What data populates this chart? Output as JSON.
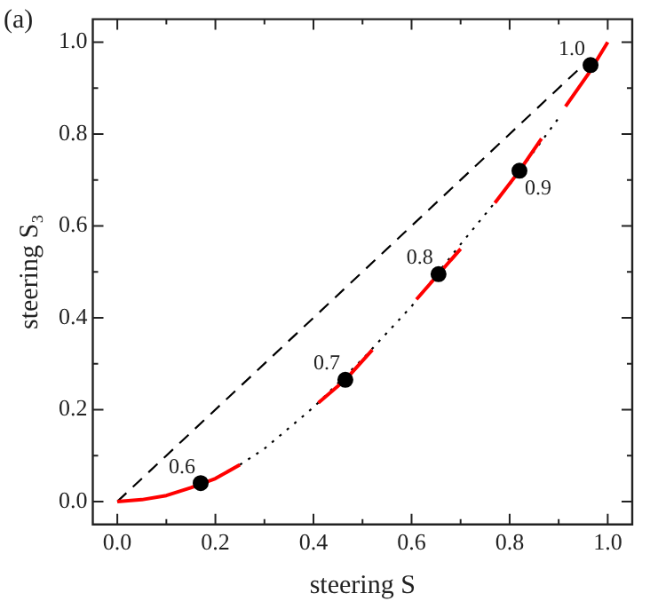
{
  "chart_data": {
    "type": "line",
    "title": "(a)",
    "xlabel": "steering S",
    "ylabel": "steering S₃",
    "xlim": [
      -0.05,
      1.05
    ],
    "ylim": [
      -0.05,
      1.05
    ],
    "xticks": [
      {
        "value": 0,
        "label": "0.0"
      },
      {
        "value": 0.1,
        "label": null
      },
      {
        "value": 0.2,
        "label": "0.2"
      },
      {
        "value": 0.3,
        "label": null
      },
      {
        "value": 0.4,
        "label": "0.4"
      },
      {
        "value": 0.5,
        "label": null
      },
      {
        "value": 0.6,
        "label": "0.6"
      },
      {
        "value": 0.7,
        "label": null
      },
      {
        "value": 0.8,
        "label": "0.8"
      },
      {
        "value": 0.9,
        "label": null
      },
      {
        "value": 1,
        "label": "1.0"
      }
    ],
    "yticks": [
      {
        "value": 0,
        "label": "0.0"
      },
      {
        "value": 0.1,
        "label": null
      },
      {
        "value": 0.2,
        "label": "0.2"
      },
      {
        "value": 0.3,
        "label": null
      },
      {
        "value": 0.4,
        "label": "0.4"
      },
      {
        "value": 0.5,
        "label": null
      },
      {
        "value": 0.6,
        "label": "0.6"
      },
      {
        "value": 0.7,
        "label": null
      },
      {
        "value": 0.8,
        "label": "0.8"
      },
      {
        "value": 0.9,
        "label": null
      },
      {
        "value": 1,
        "label": "1.0"
      }
    ],
    "grid": false,
    "legend": false,
    "series": [
      {
        "color": "#000000",
        "line_style": "dashed",
        "x": [
          0,
          0.96
        ],
        "values": [
          0,
          0.96
        ]
      },
      {
        "color": "#000000",
        "line_style": "dotted",
        "x": [
          0.25,
          0.3,
          0.4,
          0.5,
          0.6,
          0.7,
          0.8,
          0.9
        ],
        "values": [
          0.08,
          0.115,
          0.205,
          0.31,
          0.425,
          0.56,
          0.69,
          0.835
        ]
      },
      {
        "color": "#ff0000",
        "line_style": "solid",
        "x": [
          0,
          0.05,
          0.1,
          0.15,
          0.2,
          0.25,
          0.33,
          0.41,
          0.465,
          0.52,
          0.56,
          0.61,
          0.655,
          0.7,
          0.74,
          0.77,
          0.82,
          0.865,
          0.89,
          0.914,
          0.96,
          1.0
        ],
        "values": [
          0,
          0.004,
          0.013,
          0.03,
          0.05,
          0.08,
          null,
          0.215,
          0.265,
          0.33,
          null,
          0.44,
          0.495,
          0.55,
          null,
          0.65,
          0.72,
          0.79,
          null,
          0.86,
          0.93,
          1.0
        ]
      },
      {
        "type": "scatter",
        "color": "#000000",
        "marker": "circle",
        "x": [
          0.17,
          0.465,
          0.655,
          0.82,
          0.965
        ],
        "values": [
          0.04,
          0.265,
          0.495,
          0.72,
          0.95
        ]
      }
    ],
    "annotations": [
      {
        "text": "0.6",
        "x": 0.17,
        "y": 0.04
      },
      {
        "text": "0.7",
        "x": 0.465,
        "y": 0.265
      },
      {
        "text": "0.8",
        "x": 0.655,
        "y": 0.495
      },
      {
        "text": "0.9",
        "x": 0.82,
        "y": 0.72
      },
      {
        "text": "1.0",
        "x": 0.965,
        "y": 0.95
      }
    ]
  }
}
